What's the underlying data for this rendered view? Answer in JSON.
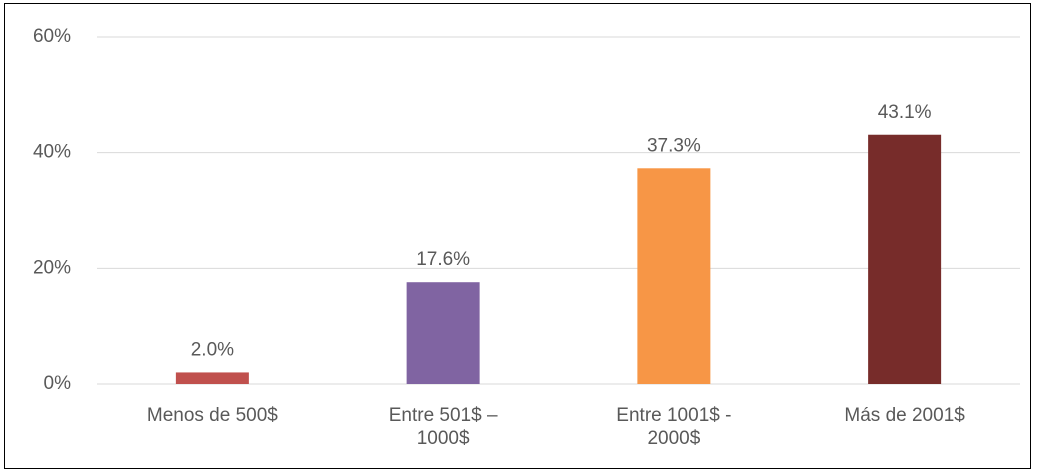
{
  "chart_data": {
    "type": "bar",
    "categories": [
      "Menos de 500$",
      "Entre 501$ – 1000$",
      "Entre 1001$ - 2000$",
      "Más de 2001$"
    ],
    "values": [
      2.0,
      17.6,
      37.3,
      43.1
    ],
    "value_labels": [
      "2.0%",
      "17.6%",
      "37.3%",
      "43.1%"
    ],
    "colors": [
      "#c0504d",
      "#8064a2",
      "#f79646",
      "#772c2a"
    ],
    "ylim": [
      0,
      60
    ],
    "yticks": [
      {
        "value": 0,
        "label": "0%"
      },
      {
        "value": 20,
        "label": "20%"
      },
      {
        "value": 40,
        "label": "40%"
      },
      {
        "value": 60,
        "label": "60%"
      }
    ],
    "grid": true
  }
}
